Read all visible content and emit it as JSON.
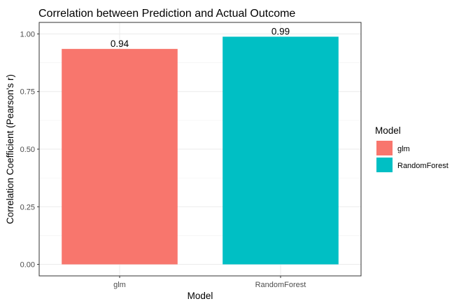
{
  "chart_data": {
    "type": "bar",
    "title": "Correlation between Prediction and Actual Outcome",
    "xlabel": "Model",
    "ylabel": "Correlation Coefficient (Pearson's r)",
    "categories": [
      "glm",
      "RandomForest"
    ],
    "values": [
      0.935,
      0.988
    ],
    "data_labels": [
      "0.94",
      "0.99"
    ],
    "colors": [
      "#F8766D",
      "#00BFC4"
    ],
    "ylim": [
      -0.05,
      1.05
    ],
    "yticks": [
      0.0,
      0.25,
      0.5,
      0.75,
      1.0
    ],
    "ytick_labels": [
      "0.00",
      "0.25",
      "0.50",
      "0.75",
      "1.00"
    ],
    "grid": true,
    "legend": {
      "title": "Model",
      "position": "right",
      "entries": [
        "glm",
        "RandomForest"
      ]
    }
  }
}
